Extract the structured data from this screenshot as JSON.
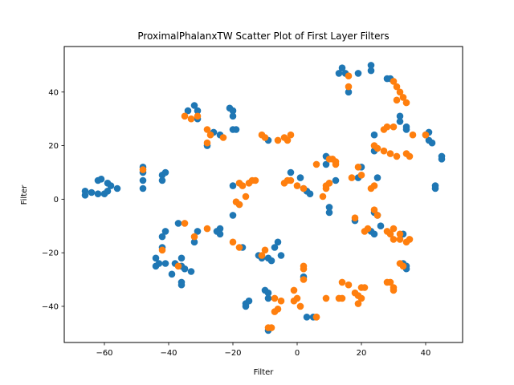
{
  "chart_data": {
    "type": "scatter",
    "title": "ProximalPhalanxTW Scatter Plot of First Layer Filters",
    "xlabel": "Filter",
    "ylabel": "Filter",
    "xlim": [
      -72.5,
      51.5
    ],
    "ylim": [
      -53.5,
      57.0
    ],
    "xticks": [
      -60,
      -40,
      -20,
      0,
      20,
      40
    ],
    "yticks": [
      -40,
      -20,
      0,
      20,
      40
    ],
    "tick_labels_x": [
      "−60",
      "−40",
      "−20",
      "0",
      "20",
      "40"
    ],
    "tick_labels_y": [
      "−40",
      "−20",
      "0",
      "20",
      "40"
    ],
    "grid": false,
    "legend": "none",
    "colors": [
      "#1f77b4",
      "#ff7f0e"
    ],
    "series": [
      {
        "color": "#1f77b4",
        "points": [
          [
            -66,
            1.5
          ],
          [
            -66,
            3
          ],
          [
            -64,
            2.5
          ],
          [
            -62,
            2
          ],
          [
            -62,
            7
          ],
          [
            -61,
            7.5
          ],
          [
            -60,
            2
          ],
          [
            -59,
            3
          ],
          [
            -59,
            6
          ],
          [
            -58,
            5
          ],
          [
            -56,
            4
          ],
          [
            -48,
            12
          ],
          [
            -48,
            10
          ],
          [
            -48,
            7
          ],
          [
            -48,
            4
          ],
          [
            -42,
            9
          ],
          [
            -42,
            7
          ],
          [
            -41,
            10
          ],
          [
            -44,
            -22
          ],
          [
            -44,
            -25
          ],
          [
            -43,
            -24
          ],
          [
            -42,
            -18
          ],
          [
            -42,
            -14
          ],
          [
            -41,
            -12
          ],
          [
            -41,
            -24
          ],
          [
            -39,
            -28
          ],
          [
            -38,
            -24
          ],
          [
            -37,
            -9
          ],
          [
            -36,
            -22
          ],
          [
            -36,
            -25
          ],
          [
            -35,
            -26
          ],
          [
            -36,
            -31
          ],
          [
            -36,
            -32
          ],
          [
            -33,
            -27
          ],
          [
            -32,
            -16
          ],
          [
            -31,
            -12
          ],
          [
            -34,
            33
          ],
          [
            -32,
            35
          ],
          [
            -31,
            33
          ],
          [
            -31,
            30
          ],
          [
            -28,
            20
          ],
          [
            -26,
            25
          ],
          [
            -24,
            24
          ],
          [
            -21,
            34
          ],
          [
            -20,
            33
          ],
          [
            -20,
            31
          ],
          [
            -20,
            26
          ],
          [
            -19,
            26
          ],
          [
            -20,
            -6
          ],
          [
            -20,
            5
          ],
          [
            -18,
            -2
          ],
          [
            -17,
            -18
          ],
          [
            -16,
            -39
          ],
          [
            -16,
            -40
          ],
          [
            -15,
            -38
          ],
          [
            -25,
            -12
          ],
          [
            -24,
            -11
          ],
          [
            -24,
            -13
          ],
          [
            -12,
            -21
          ],
          [
            -11,
            -22
          ],
          [
            -9,
            -22
          ],
          [
            -8,
            -23
          ],
          [
            -7,
            -18
          ],
          [
            -6,
            -16
          ],
          [
            -5,
            -21
          ],
          [
            -10,
            -34
          ],
          [
            -9,
            -35
          ],
          [
            -9,
            -37
          ],
          [
            -9,
            -49
          ],
          [
            -9,
            22
          ],
          [
            -2,
            10
          ],
          [
            1,
            8
          ],
          [
            2,
            4
          ],
          [
            3,
            3
          ],
          [
            4,
            2
          ],
          [
            2,
            -29
          ],
          [
            3,
            -44
          ],
          [
            5,
            -44
          ],
          [
            9,
            16
          ],
          [
            9,
            13
          ],
          [
            10,
            -3
          ],
          [
            10,
            -5
          ],
          [
            12,
            7
          ],
          [
            13,
            47
          ],
          [
            14,
            49
          ],
          [
            15,
            47
          ],
          [
            16,
            40
          ],
          [
            19,
            47
          ],
          [
            23,
            50
          ],
          [
            23,
            48
          ],
          [
            20,
            12
          ],
          [
            19,
            8
          ],
          [
            18,
            -8
          ],
          [
            24,
            24
          ],
          [
            24,
            18
          ],
          [
            25,
            8
          ],
          [
            24,
            -5
          ],
          [
            25,
            -6
          ],
          [
            26,
            -10
          ],
          [
            23,
            -12
          ],
          [
            24,
            -13
          ],
          [
            28,
            45
          ],
          [
            29,
            45
          ],
          [
            32,
            31
          ],
          [
            32,
            29
          ],
          [
            34,
            27
          ],
          [
            34,
            26
          ],
          [
            40,
            24
          ],
          [
            41,
            25
          ],
          [
            42,
            21
          ],
          [
            41,
            22
          ],
          [
            45,
            16
          ],
          [
            45,
            15
          ],
          [
            43,
            5
          ],
          [
            43,
            4
          ],
          [
            33,
            -13
          ],
          [
            33,
            -24
          ],
          [
            34,
            -26
          ],
          [
            34,
            -25
          ]
        ]
      },
      {
        "color": "#ff7f0e",
        "points": [
          [
            -48,
            11
          ],
          [
            -42,
            -19
          ],
          [
            -37,
            -25
          ],
          [
            -35,
            -9
          ],
          [
            -35,
            31
          ],
          [
            -33,
            30
          ],
          [
            -31,
            31
          ],
          [
            -28,
            -11
          ],
          [
            -28,
            26
          ],
          [
            -27,
            24
          ],
          [
            -28,
            21
          ],
          [
            -32,
            -14
          ],
          [
            -23,
            23
          ],
          [
            -20,
            -16
          ],
          [
            -19,
            -1
          ],
          [
            -18,
            -18
          ],
          [
            -18,
            -2
          ],
          [
            -18,
            6
          ],
          [
            -17,
            5
          ],
          [
            -15,
            6
          ],
          [
            -14,
            7
          ],
          [
            -13,
            7
          ],
          [
            -16,
            1
          ],
          [
            -11,
            24
          ],
          [
            -10,
            23
          ],
          [
            -11,
            -21
          ],
          [
            -10,
            -19
          ],
          [
            -9,
            -48
          ],
          [
            -8,
            -48
          ],
          [
            -7,
            -42
          ],
          [
            -6,
            -41
          ],
          [
            -7,
            -37
          ],
          [
            -5,
            -38
          ],
          [
            -6,
            22
          ],
          [
            -4,
            23
          ],
          [
            -3,
            22
          ],
          [
            -2,
            24
          ],
          [
            -4,
            6
          ],
          [
            -3,
            7
          ],
          [
            -2,
            7
          ],
          [
            0,
            5
          ],
          [
            2,
            4
          ],
          [
            -1,
            -34
          ],
          [
            -1,
            -38
          ],
          [
            0,
            -37
          ],
          [
            1,
            -40
          ],
          [
            2,
            -26
          ],
          [
            2,
            -25
          ],
          [
            2,
            -30
          ],
          [
            6,
            -44
          ],
          [
            6,
            -44
          ],
          [
            6,
            13
          ],
          [
            8,
            1
          ],
          [
            9,
            4
          ],
          [
            9,
            5
          ],
          [
            10,
            6
          ],
          [
            10,
            15
          ],
          [
            11,
            15
          ],
          [
            12,
            13
          ],
          [
            12,
            14
          ],
          [
            9,
            -37
          ],
          [
            13,
            -37
          ],
          [
            14,
            -37
          ],
          [
            14,
            -31
          ],
          [
            16,
            -32
          ],
          [
            18,
            -35
          ],
          [
            19,
            -36
          ],
          [
            19,
            -39
          ],
          [
            20,
            -37
          ],
          [
            20,
            -33
          ],
          [
            21,
            -33
          ],
          [
            16,
            46
          ],
          [
            16,
            42
          ],
          [
            17,
            8
          ],
          [
            18,
            -7
          ],
          [
            19,
            12
          ],
          [
            20,
            9
          ],
          [
            21,
            -12
          ],
          [
            22,
            -11
          ],
          [
            23,
            4
          ],
          [
            24,
            -4
          ],
          [
            24,
            5
          ],
          [
            25,
            -6
          ],
          [
            24,
            20
          ],
          [
            25,
            19
          ],
          [
            27,
            18
          ],
          [
            27,
            26
          ],
          [
            28,
            27
          ],
          [
            29,
            17
          ],
          [
            30,
            27
          ],
          [
            31,
            16
          ],
          [
            28,
            -12
          ],
          [
            29,
            -13
          ],
          [
            30,
            -15
          ],
          [
            30,
            -11
          ],
          [
            32,
            -13
          ],
          [
            32,
            -15
          ],
          [
            34,
            -16
          ],
          [
            35,
            -15
          ],
          [
            28,
            -31
          ],
          [
            29,
            -31
          ],
          [
            30,
            -33
          ],
          [
            30,
            -34
          ],
          [
            32,
            -24
          ],
          [
            33,
            -25
          ],
          [
            30,
            44
          ],
          [
            31,
            42
          ],
          [
            32,
            40
          ],
          [
            33,
            38
          ],
          [
            34,
            36
          ],
          [
            31,
            37
          ],
          [
            34,
            17
          ],
          [
            35,
            16
          ],
          [
            36,
            24
          ],
          [
            40,
            24
          ]
        ]
      }
    ]
  }
}
